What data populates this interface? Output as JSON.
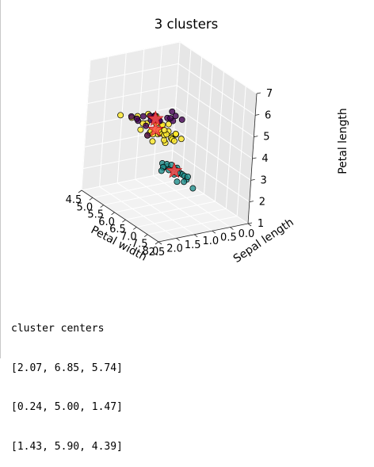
{
  "chart_data": {
    "type": "scatter",
    "title": "3 clusters",
    "xlabel": "Petal width",
    "ylabel": "Sepal length",
    "zlabel": "Petal length",
    "x_ticks": [
      "2.5",
      "2.0",
      "1.5",
      "1.0",
      "0.5",
      "0.0"
    ],
    "y_ticks": [
      "4.5",
      "5.0",
      "5.5",
      "6.0",
      "6.5",
      "7.0",
      "7.5",
      "8.0"
    ],
    "z_ticks": [
      "1",
      "2",
      "3",
      "4",
      "5",
      "6",
      "7"
    ],
    "xlim": [
      0.0,
      2.5
    ],
    "ylim": [
      4.5,
      8.0
    ],
    "zlim": [
      1,
      7
    ],
    "grid": true,
    "series": [
      {
        "color": "#440154",
        "points": [
          [
            2.1,
            6.7,
            5.6
          ],
          [
            2.3,
            7.2,
            6.0
          ],
          [
            1.9,
            6.5,
            5.4
          ],
          [
            2.2,
            7.7,
            6.4
          ],
          [
            2.0,
            6.9,
            5.7
          ],
          [
            2.4,
            6.3,
            5.6
          ],
          [
            1.8,
            7.3,
            6.1
          ],
          [
            2.5,
            6.7,
            5.8
          ],
          [
            2.1,
            7.6,
            6.6
          ],
          [
            1.8,
            6.4,
            5.5
          ],
          [
            2.3,
            6.9,
            5.1
          ],
          [
            2.0,
            7.9,
            6.4
          ],
          [
            2.2,
            6.8,
            5.9
          ],
          [
            1.9,
            7.1,
            5.9
          ],
          [
            2.1,
            6.5,
            5.2
          ],
          [
            2.3,
            7.4,
            6.1
          ],
          [
            2.0,
            6.2,
            5.4
          ],
          [
            2.4,
            6.6,
            5.6
          ],
          [
            1.8,
            7.2,
            5.8
          ],
          [
            2.2,
            7.0,
            6.0
          ]
        ]
      },
      {
        "color": "#21908d",
        "points": [
          [
            0.2,
            5.1,
            1.4
          ],
          [
            0.2,
            4.9,
            1.4
          ],
          [
            0.2,
            4.7,
            1.3
          ],
          [
            0.2,
            4.6,
            1.5
          ],
          [
            0.2,
            5.0,
            1.4
          ],
          [
            0.4,
            5.4,
            1.7
          ],
          [
            0.3,
            4.6,
            1.4
          ],
          [
            0.2,
            5.0,
            1.5
          ],
          [
            0.2,
            4.4,
            1.4
          ],
          [
            0.1,
            4.9,
            1.5
          ],
          [
            0.2,
            5.4,
            1.5
          ],
          [
            0.2,
            4.8,
            1.6
          ],
          [
            0.1,
            4.8,
            1.4
          ],
          [
            0.1,
            4.3,
            1.1
          ],
          [
            0.2,
            5.8,
            1.2
          ],
          [
            0.4,
            5.7,
            1.5
          ],
          [
            0.4,
            5.4,
            1.3
          ],
          [
            0.3,
            5.1,
            1.4
          ],
          [
            0.3,
            5.7,
            1.7
          ],
          [
            0.3,
            5.1,
            1.5
          ],
          [
            0.2,
            5.2,
            1.5
          ],
          [
            0.2,
            5.5,
            1.4
          ],
          [
            0.6,
            5.0,
            1.6
          ],
          [
            0.2,
            5.3,
            1.5
          ],
          [
            0.1,
            4.5,
            1.3
          ]
        ]
      },
      {
        "color": "#fde725",
        "points": [
          [
            1.4,
            7.0,
            4.7
          ],
          [
            1.5,
            6.4,
            4.5
          ],
          [
            1.5,
            6.9,
            4.9
          ],
          [
            1.3,
            5.5,
            4.0
          ],
          [
            1.5,
            6.5,
            4.6
          ],
          [
            1.3,
            5.7,
            4.5
          ],
          [
            1.6,
            6.3,
            4.7
          ],
          [
            1.0,
            4.9,
            3.3
          ],
          [
            1.3,
            6.6,
            4.6
          ],
          [
            1.4,
            5.2,
            3.9
          ],
          [
            1.0,
            5.0,
            3.5
          ],
          [
            1.5,
            5.9,
            4.2
          ],
          [
            1.0,
            6.0,
            4.0
          ],
          [
            1.4,
            6.1,
            4.7
          ],
          [
            1.3,
            5.6,
            3.6
          ],
          [
            1.4,
            6.7,
            4.4
          ],
          [
            1.5,
            5.6,
            4.5
          ],
          [
            1.0,
            5.8,
            4.1
          ],
          [
            1.5,
            6.2,
            4.5
          ],
          [
            1.1,
            5.6,
            3.9
          ],
          [
            1.8,
            5.9,
            4.8
          ],
          [
            1.3,
            6.1,
            4.0
          ],
          [
            1.5,
            6.3,
            4.9
          ],
          [
            1.2,
            6.1,
            4.7
          ],
          [
            1.3,
            6.4,
            4.3
          ],
          [
            1.4,
            6.6,
            4.4
          ],
          [
            1.7,
            6.7,
            5.0
          ],
          [
            1.5,
            6.0,
            4.5
          ],
          [
            1.0,
            5.7,
            3.5
          ],
          [
            1.1,
            5.5,
            3.8
          ],
          [
            1.6,
            5.8,
            5.1
          ],
          [
            1.8,
            4.9,
            4.5
          ],
          [
            1.5,
            6.0,
            5.1
          ],
          [
            2.0,
            5.7,
            5.0
          ],
          [
            1.9,
            5.8,
            5.1
          ]
        ]
      }
    ],
    "centers": [
      [
        2.07,
        6.85,
        5.74
      ],
      [
        0.24,
        5.0,
        1.47
      ],
      [
        1.43,
        5.9,
        4.39
      ]
    ]
  },
  "output": {
    "header": "cluster centers",
    "lines": [
      "[2.07, 6.85, 5.74]",
      "[0.24, 5.00, 1.47]",
      "[1.43, 5.90, 4.39]"
    ]
  }
}
